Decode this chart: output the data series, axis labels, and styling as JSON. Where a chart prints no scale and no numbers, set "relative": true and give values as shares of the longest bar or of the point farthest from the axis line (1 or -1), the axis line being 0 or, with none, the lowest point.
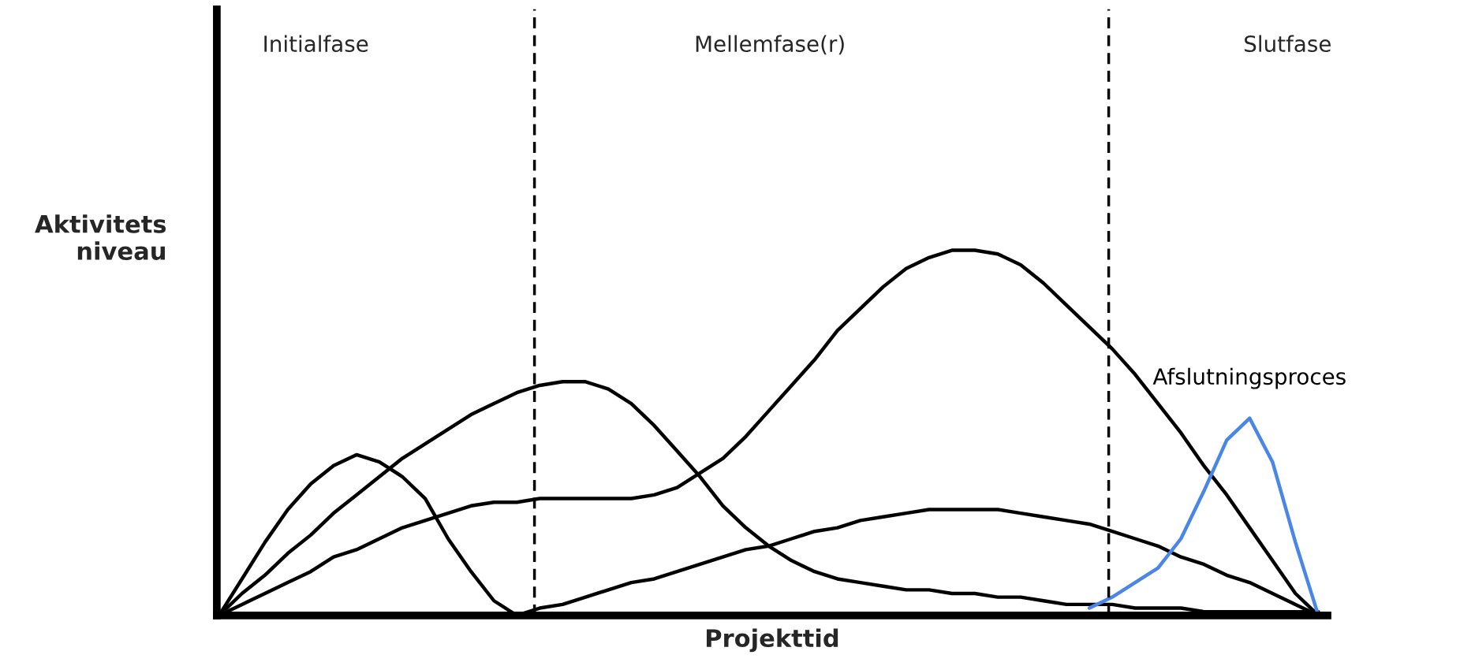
{
  "chart_data": {
    "type": "line",
    "relative": true,
    "xlabel": "Projekttid",
    "ylabel": "Aktivitets\nniveau",
    "legend": false,
    "marker": "none",
    "line_style": "solid",
    "categories": [
      null,
      null,
      null,
      null,
      null,
      null,
      null,
      null,
      null,
      null,
      null,
      null,
      null,
      null,
      null,
      null,
      null,
      null,
      null,
      null,
      null,
      null,
      null,
      null,
      null,
      null,
      null,
      null,
      null,
      null,
      null,
      null,
      null,
      null,
      null,
      null,
      null,
      null,
      null,
      null,
      null,
      null,
      null,
      null,
      null,
      null,
      null,
      null,
      null
    ],
    "series": [
      {
        "color": "#000000",
        "values": [
          0,
          0.1,
          0.2,
          0.29,
          0.36,
          0.41,
          0.44,
          0.42,
          0.38,
          0.32,
          0.21,
          0.12,
          0.04,
          0,
          null,
          null,
          null,
          null,
          null,
          null,
          null,
          null,
          null,
          null,
          null,
          null,
          null,
          null,
          null,
          null,
          null,
          null,
          null,
          null,
          null,
          null,
          null,
          null,
          null,
          null,
          null,
          null,
          null,
          null,
          null,
          null,
          null,
          null,
          null
        ]
      },
      {
        "color": "#000000",
        "values": [
          0,
          0.06,
          0.11,
          0.17,
          0.22,
          0.28,
          0.33,
          0.38,
          0.43,
          0.47,
          0.51,
          0.55,
          0.58,
          0.61,
          0.63,
          0.64,
          0.64,
          0.62,
          0.58,
          0.52,
          0.45,
          0.38,
          0.3,
          0.24,
          0.19,
          0.15,
          0.12,
          0.1,
          0.09,
          0.08,
          0.07,
          0.07,
          0.06,
          0.06,
          0.05,
          0.05,
          0.04,
          0.03,
          0.03,
          0.03,
          0.02,
          0.02,
          0.02,
          0.01,
          0.01,
          0.01,
          0.01,
          0.01,
          0.01
        ]
      },
      {
        "color": "#000000",
        "values": [
          0,
          0.03,
          0.06,
          0.09,
          0.12,
          0.16,
          0.18,
          0.21,
          0.24,
          0.26,
          0.28,
          0.3,
          0.31,
          0.31,
          0.32,
          0.32,
          0.32,
          0.32,
          0.32,
          0.33,
          0.35,
          0.39,
          0.43,
          0.49,
          0.56,
          0.63,
          0.7,
          0.78,
          0.84,
          0.9,
          0.95,
          0.98,
          1.0,
          1.0,
          0.99,
          0.96,
          0.91,
          0.85,
          0.79,
          0.73,
          0.66,
          0.58,
          0.5,
          0.41,
          0.33,
          0.24,
          0.15,
          0.06,
          0
        ]
      },
      {
        "color": "#000000",
        "values": [
          null,
          null,
          null,
          null,
          null,
          null,
          null,
          null,
          null,
          null,
          null,
          null,
          null,
          0,
          0.02,
          0.03,
          0.05,
          0.07,
          0.09,
          0.1,
          0.12,
          0.14,
          0.16,
          0.18,
          0.19,
          0.21,
          0.23,
          0.24,
          0.26,
          0.27,
          0.28,
          0.29,
          0.29,
          0.29,
          0.29,
          0.28,
          0.27,
          0.26,
          0.25,
          0.23,
          0.21,
          0.19,
          0.16,
          0.14,
          0.11,
          0.09,
          0.06,
          0.03,
          0
        ]
      },
      {
        "name": "Afslutningsproces",
        "color": "#4a86e8",
        "values": [
          null,
          null,
          null,
          null,
          null,
          null,
          null,
          null,
          null,
          null,
          null,
          null,
          null,
          null,
          null,
          null,
          null,
          null,
          null,
          null,
          null,
          null,
          null,
          null,
          null,
          null,
          null,
          null,
          null,
          null,
          null,
          null,
          null,
          null,
          null,
          null,
          null,
          null,
          0.02,
          0.05,
          0.09,
          0.13,
          0.21,
          0.34,
          0.48,
          0.54,
          0.42,
          0.2,
          0
        ]
      }
    ],
    "annotations": [
      "Initialfase",
      "Mellemfase(r)",
      "Slutfase"
    ]
  }
}
